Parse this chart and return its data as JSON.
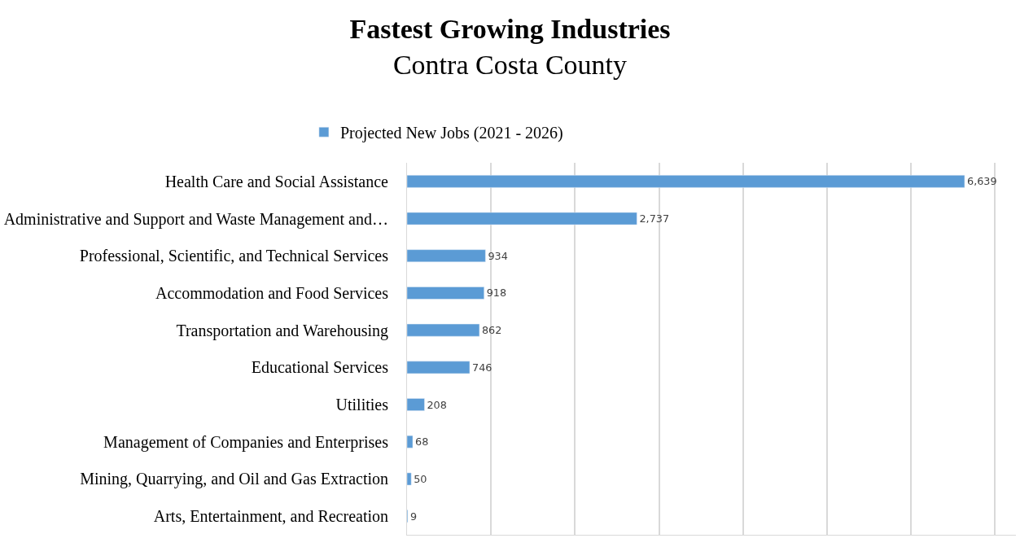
{
  "chart_data": {
    "type": "bar",
    "orientation": "horizontal",
    "title": "Fastest Growing Industries",
    "subtitle": "Contra Costa County",
    "categories": [
      "Health Care and Social Assistance",
      "Administrative and Support and Waste Management and…",
      "Professional, Scientific, and Technical Services",
      "Accommodation and Food Services",
      "Transportation and Warehousing",
      "Educational Services",
      "Utilities",
      "Management of Companies and Enterprises",
      "Mining, Quarrying, and Oil and Gas Extraction",
      "Arts, Entertainment, and Recreation"
    ],
    "series": [
      {
        "name": "Projected New Jobs (2021 - 2026)",
        "color": "#5b9bd5",
        "values": [
          6639,
          2737,
          934,
          918,
          862,
          746,
          208,
          68,
          50,
          9
        ],
        "value_labels": [
          "6,639",
          "2,737",
          "934",
          "918",
          "862",
          "746",
          "208",
          "68",
          "50",
          "9"
        ]
      }
    ],
    "xlim": [
      0,
      7250
    ],
    "xticks": [
      {
        "value": 0,
        "label": null
      },
      {
        "value": 1000,
        "label": null
      },
      {
        "value": 2000,
        "label": null
      },
      {
        "value": 3000,
        "label": null
      },
      {
        "value": 4000,
        "label": null
      },
      {
        "value": 5000,
        "label": null
      },
      {
        "value": 6000,
        "label": null
      },
      {
        "value": 7000,
        "label": null
      }
    ],
    "tick_labels": "y",
    "grid": "x",
    "legend": "top"
  }
}
